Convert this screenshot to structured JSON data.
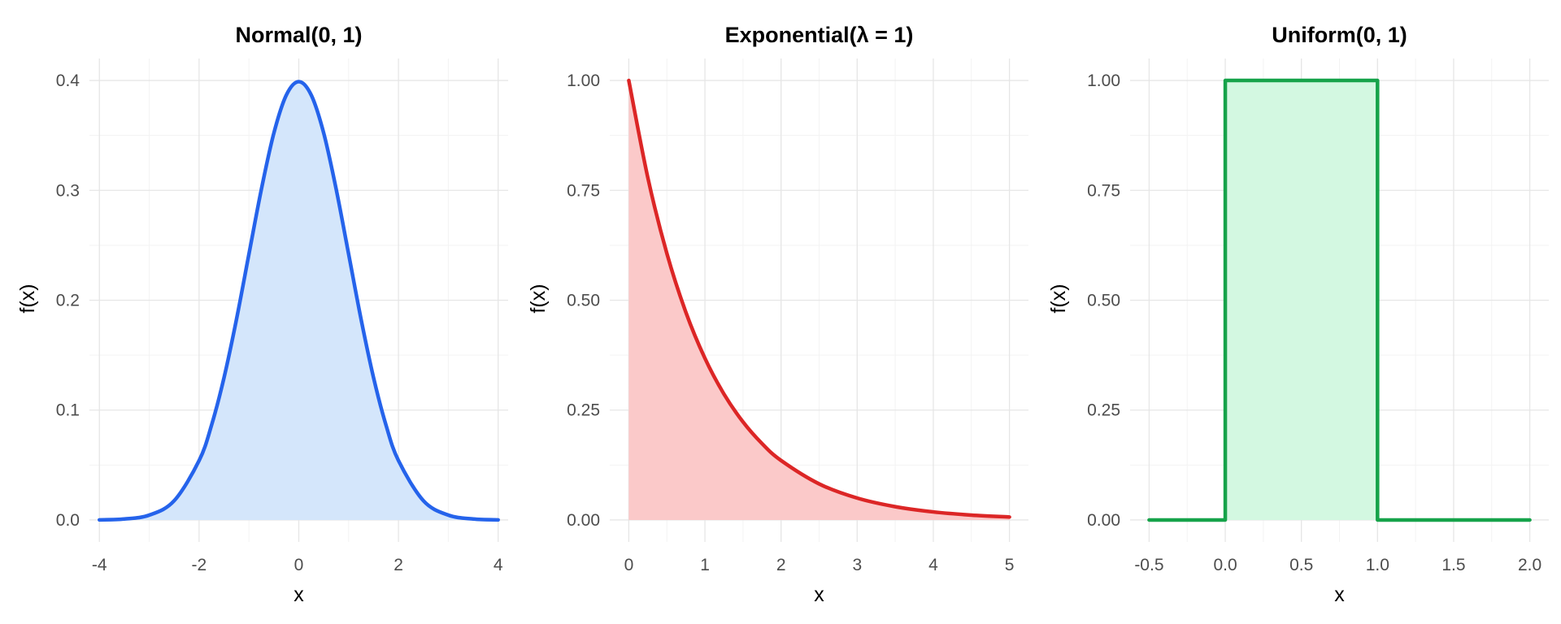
{
  "chart_data": [
    {
      "type": "area",
      "title": "Normal(0, 1)",
      "xlabel": "x",
      "ylabel": "f(x)",
      "xlim": [
        -4.2,
        4.2
      ],
      "ylim": [
        -0.02,
        0.42
      ],
      "x_ticks": [
        -4,
        -2,
        0,
        2,
        4
      ],
      "x_tick_labels": [
        "-4",
        "-2",
        "0",
        "2",
        "4"
      ],
      "y_ticks": [
        0.0,
        0.1,
        0.2,
        0.3,
        0.4
      ],
      "y_tick_labels": [
        "0.0",
        "0.1",
        "0.2",
        "0.3",
        "0.4"
      ],
      "grid": true,
      "line_color": "#2563eb",
      "fill_color": "#d4e6fb",
      "series": [
        {
          "x": [
            -4,
            -3.5,
            -3,
            -2.5,
            -2,
            -1.75,
            -1.5,
            -1.25,
            -1,
            -0.75,
            -0.5,
            -0.25,
            0,
            0.25,
            0.5,
            0.75,
            1,
            1.25,
            1.5,
            1.75,
            2,
            2.5,
            3,
            3.5,
            4
          ],
          "y": [
            0.0001,
            0.0009,
            0.0044,
            0.0175,
            0.054,
            0.0863,
            0.1295,
            0.1826,
            0.242,
            0.3011,
            0.3521,
            0.3867,
            0.3989,
            0.3867,
            0.3521,
            0.3011,
            0.242,
            0.1826,
            0.1295,
            0.0863,
            0.054,
            0.0175,
            0.0044,
            0.0009,
            0.0001
          ]
        }
      ]
    },
    {
      "type": "area",
      "title": "Exponential(λ = 1)",
      "xlabel": "x",
      "ylabel": "f(x)",
      "xlim": [
        -0.25,
        5.25
      ],
      "ylim": [
        -0.05,
        1.05
      ],
      "x_ticks": [
        0,
        1,
        2,
        3,
        4,
        5
      ],
      "x_tick_labels": [
        "0",
        "1",
        "2",
        "3",
        "4",
        "5"
      ],
      "y_ticks": [
        0.0,
        0.25,
        0.5,
        0.75,
        1.0
      ],
      "y_tick_labels": [
        "0.00",
        "0.25",
        "0.50",
        "0.75",
        "1.00"
      ],
      "grid": true,
      "line_color": "#dc2626",
      "fill_color": "#fbc9c9",
      "series": [
        {
          "x": [
            0,
            0.25,
            0.5,
            0.75,
            1,
            1.25,
            1.5,
            1.75,
            2,
            2.5,
            3,
            3.5,
            4,
            4.5,
            5
          ],
          "y": [
            1.0,
            0.7788,
            0.6065,
            0.4724,
            0.3679,
            0.2865,
            0.2231,
            0.1738,
            0.1353,
            0.0821,
            0.0498,
            0.0302,
            0.0183,
            0.0111,
            0.0067
          ]
        }
      ]
    },
    {
      "type": "area",
      "title": "Uniform(0, 1)",
      "xlabel": "x",
      "ylabel": "f(x)",
      "xlim": [
        -0.625,
        2.125
      ],
      "ylim": [
        -0.05,
        1.05
      ],
      "x_ticks": [
        -0.5,
        0.0,
        0.5,
        1.0,
        1.5,
        2.0
      ],
      "x_tick_labels": [
        "-0.5",
        "0.0",
        "0.5",
        "1.0",
        "1.5",
        "2.0"
      ],
      "y_ticks": [
        0.0,
        0.25,
        0.5,
        0.75,
        1.0
      ],
      "y_tick_labels": [
        "0.00",
        "0.25",
        "0.50",
        "0.75",
        "1.00"
      ],
      "grid": true,
      "line_color": "#16a34a",
      "fill_color": "#d3f8e1",
      "series": [
        {
          "x": [
            -0.5,
            0.0,
            0.0,
            1.0,
            1.0,
            2.0
          ],
          "y": [
            0.0,
            0.0,
            1.0,
            1.0,
            0.0,
            0.0
          ]
        }
      ]
    }
  ]
}
